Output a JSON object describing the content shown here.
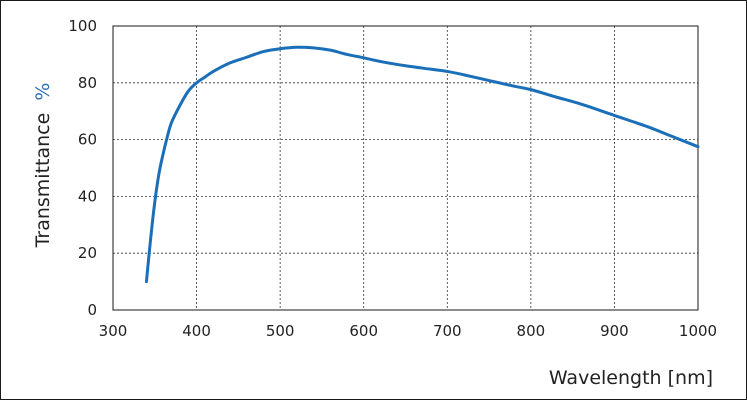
{
  "chart_data": {
    "type": "line",
    "xlabel": "Wavelength [nm]",
    "ylabel": "Transmittance",
    "ylabel_unit": "%",
    "xlim": [
      300,
      1000
    ],
    "ylim": [
      0,
      100
    ],
    "xticks": [
      300,
      400,
      500,
      600,
      700,
      800,
      900,
      1000
    ],
    "yticks": [
      0,
      20,
      40,
      60,
      80,
      100
    ],
    "grid": true,
    "series": [
      {
        "color": "#1b6fb8",
        "x": [
          340,
          345,
          350,
          355,
          360,
          365,
          370,
          380,
          390,
          400,
          410,
          420,
          440,
          460,
          480,
          500,
          520,
          540,
          560,
          580,
          600,
          620,
          650,
          680,
          700,
          720,
          750,
          780,
          800,
          830,
          860,
          900,
          940,
          970,
          1000
        ],
        "y": [
          10,
          25,
          38,
          48,
          55,
          61,
          66,
          72,
          77,
          80,
          82,
          84,
          87,
          89,
          91,
          92,
          92.5,
          92.3,
          91.5,
          90,
          88.8,
          87.5,
          86,
          84.8,
          84,
          82.8,
          80.8,
          78.8,
          77.6,
          75,
          72.5,
          68.5,
          64.5,
          61,
          57.5
        ]
      }
    ]
  }
}
